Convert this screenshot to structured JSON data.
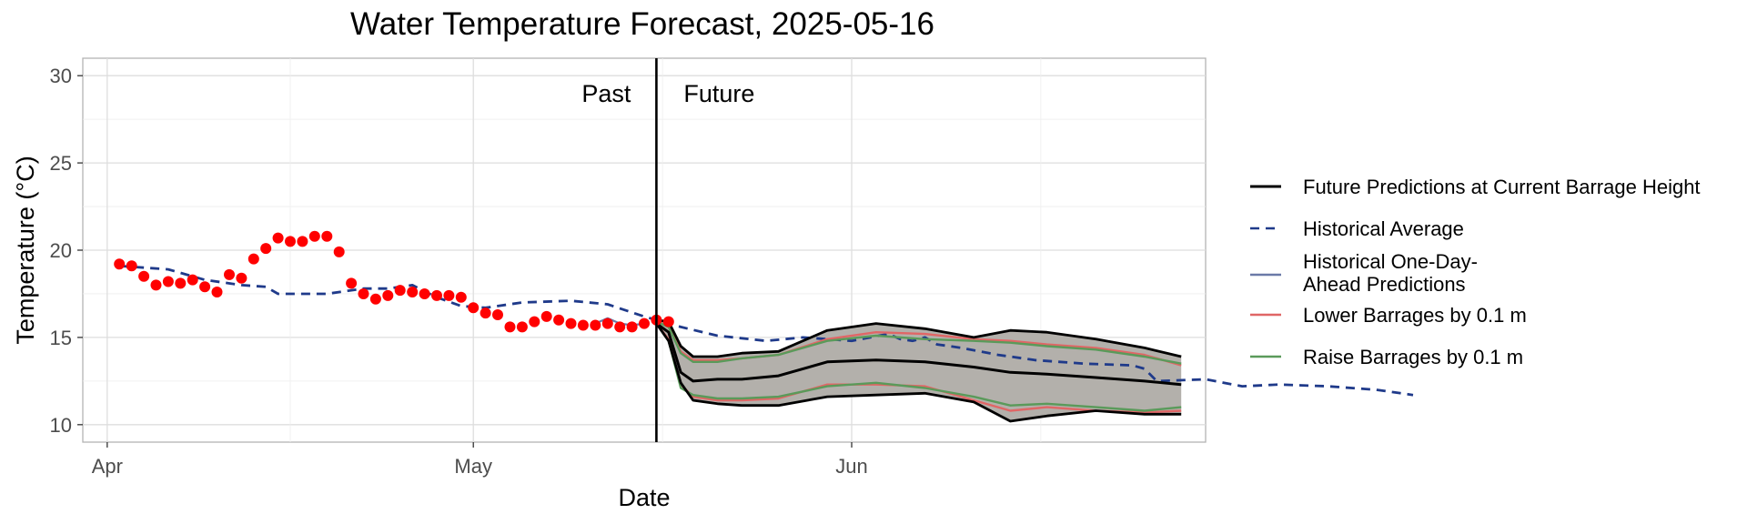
{
  "chart_data": {
    "type": "line",
    "title": "Water Temperature Forecast, 2025-05-16",
    "xlabel": "Date",
    "ylabel": "Temperature (°C)",
    "xlim": [
      "2025-03-30",
      "2025-06-30"
    ],
    "ylim": [
      9,
      31
    ],
    "x_ticks": [
      {
        "date": "2025-04-01",
        "label": "Apr"
      },
      {
        "date": "2025-05-01",
        "label": "May"
      },
      {
        "date": "2025-06-01",
        "label": "Jun"
      }
    ],
    "y_ticks": [
      10,
      15,
      20,
      25,
      30
    ],
    "grid": true,
    "legend_position": "right",
    "divider": {
      "date": "2025-05-16",
      "left_label": "Past",
      "right_label": "Future"
    },
    "colors": {
      "observed": "#ff0000",
      "future": "#000000",
      "historical_average": "#1f3a8a",
      "one_day_ahead": "#6b7aa8",
      "lower": "#e06666",
      "raise": "#5a9a5a",
      "band": "#b3b0ab"
    },
    "legend": [
      {
        "key": "future",
        "label": "Future Predictions at Current Barrage Height",
        "style": "solid"
      },
      {
        "key": "historical_average",
        "label": "Historical Average",
        "style": "dashed"
      },
      {
        "key": "one_day_ahead",
        "label": "Historical One-Day-\nAhead Predictions",
        "style": "solid"
      },
      {
        "key": "lower",
        "label": "Lower Barrages by 0.1 m",
        "style": "solid"
      },
      {
        "key": "raise",
        "label": "Raise Barrages by 0.1 m",
        "style": "solid"
      }
    ],
    "observed_start": "2025-04-02",
    "observed": [
      19.2,
      19.1,
      18.5,
      18.0,
      18.2,
      18.1,
      18.3,
      17.9,
      17.6,
      18.6,
      18.4,
      19.5,
      20.1,
      20.7,
      20.5,
      20.5,
      20.8,
      20.8,
      19.9,
      18.1,
      17.5,
      17.2,
      17.4,
      17.7,
      17.6,
      17.5,
      17.4,
      17.4,
      17.3,
      16.7,
      16.4,
      16.3,
      15.6,
      15.6,
      15.9,
      16.2,
      16.0,
      15.8,
      15.7,
      15.7,
      15.8,
      15.6,
      15.6,
      15.8,
      16.0,
      15.9
    ],
    "one_day_ahead": [
      {
        "date": "2025-05-11",
        "value": 15.8
      },
      {
        "date": "2025-05-12",
        "value": 16.1
      },
      {
        "date": "2025-05-13",
        "value": 15.8
      },
      {
        "date": "2025-05-14",
        "value": 15.7
      },
      {
        "date": "2025-05-15",
        "value": 15.8
      }
    ],
    "historical_average": [
      {
        "date": "2025-04-02",
        "value": 19.1
      },
      {
        "date": "2025-04-06",
        "value": 18.9
      },
      {
        "date": "2025-04-09",
        "value": 18.3
      },
      {
        "date": "2025-04-12",
        "value": 18.0
      },
      {
        "date": "2025-04-14",
        "value": 17.9
      },
      {
        "date": "2025-04-15",
        "value": 17.5
      },
      {
        "date": "2025-04-19",
        "value": 17.5
      },
      {
        "date": "2025-04-22",
        "value": 17.8
      },
      {
        "date": "2025-04-24",
        "value": 17.8
      },
      {
        "date": "2025-04-26",
        "value": 18.0
      },
      {
        "date": "2025-04-28",
        "value": 17.3
      },
      {
        "date": "2025-04-30",
        "value": 16.8
      },
      {
        "date": "2025-05-02",
        "value": 16.7
      },
      {
        "date": "2025-05-05",
        "value": 17.0
      },
      {
        "date": "2025-05-09",
        "value": 17.1
      },
      {
        "date": "2025-05-12",
        "value": 16.9
      },
      {
        "date": "2025-05-15",
        "value": 16.2
      },
      {
        "date": "2025-05-18",
        "value": 15.6
      },
      {
        "date": "2025-05-21",
        "value": 15.1
      },
      {
        "date": "2025-05-25",
        "value": 14.8
      },
      {
        "date": "2025-05-28",
        "value": 15.0
      },
      {
        "date": "2025-06-01",
        "value": 14.8
      },
      {
        "date": "2025-06-04",
        "value": 15.2
      },
      {
        "date": "2025-06-05",
        "value": 14.9
      },
      {
        "date": "2025-06-06",
        "value": 14.8
      },
      {
        "date": "2025-06-07",
        "value": 15.0
      },
      {
        "date": "2025-06-08",
        "value": 14.6
      },
      {
        "date": "2025-06-10",
        "value": 14.4
      },
      {
        "date": "2025-06-13",
        "value": 14.0
      },
      {
        "date": "2025-06-16",
        "value": 13.7
      },
      {
        "date": "2025-06-20",
        "value": 13.5
      },
      {
        "date": "2025-06-24",
        "value": 13.4
      },
      {
        "date": "2025-06-25",
        "value": 13.2
      },
      {
        "date": "2025-06-26",
        "value": 12.5
      },
      {
        "date": "2025-06-30",
        "value": 12.6
      },
      {
        "date": "2025-07-03",
        "value": 12.2
      },
      {
        "date": "2025-07-06",
        "value": 12.3
      },
      {
        "date": "2025-07-10",
        "value": 12.2
      },
      {
        "date": "2025-07-14",
        "value": 12.0
      },
      {
        "date": "2025-07-17",
        "value": 11.7
      }
    ],
    "forecast_dates": [
      "2025-05-16",
      "2025-05-17",
      "2025-05-18",
      "2025-05-19",
      "2025-05-21",
      "2025-05-23",
      "2025-05-26",
      "2025-05-30",
      "2025-06-03",
      "2025-06-07",
      "2025-06-11",
      "2025-06-14",
      "2025-06-17",
      "2025-06-21",
      "2025-06-25",
      "2025-06-28"
    ],
    "future_upper": [
      16.0,
      15.9,
      14.5,
      13.9,
      13.9,
      14.1,
      14.2,
      15.4,
      15.8,
      15.5,
      15.0,
      15.4,
      15.3,
      14.9,
      14.4,
      13.9
    ],
    "future_median": [
      15.8,
      15.3,
      13.0,
      12.5,
      12.6,
      12.6,
      12.8,
      13.6,
      13.7,
      13.6,
      13.3,
      13.0,
      12.9,
      12.7,
      12.5,
      12.3
    ],
    "future_lower": [
      15.8,
      14.8,
      12.4,
      11.4,
      11.2,
      11.1,
      11.1,
      11.6,
      11.7,
      11.8,
      11.3,
      10.2,
      10.5,
      10.8,
      10.6,
      10.6
    ],
    "lower_barrages_upper": [
      15.9,
      15.7,
      14.2,
      13.7,
      13.7,
      13.8,
      14.0,
      14.9,
      15.3,
      15.2,
      14.9,
      14.8,
      14.6,
      14.4,
      14.0,
      13.4
    ],
    "lower_barrages_lower": [
      15.8,
      14.9,
      12.3,
      11.6,
      11.4,
      11.4,
      11.5,
      12.3,
      12.3,
      12.2,
      11.4,
      10.8,
      11.0,
      10.8,
      10.7,
      10.8
    ],
    "raise_barrages_upper": [
      15.9,
      15.6,
      14.1,
      13.6,
      13.6,
      13.8,
      14.0,
      14.8,
      15.1,
      14.9,
      14.8,
      14.7,
      14.5,
      14.3,
      13.9,
      13.5
    ],
    "raise_barrages_lower": [
      15.8,
      14.8,
      12.1,
      11.7,
      11.5,
      11.5,
      11.6,
      12.2,
      12.4,
      12.1,
      11.6,
      11.1,
      11.2,
      11.0,
      10.8,
      11.0
    ]
  }
}
